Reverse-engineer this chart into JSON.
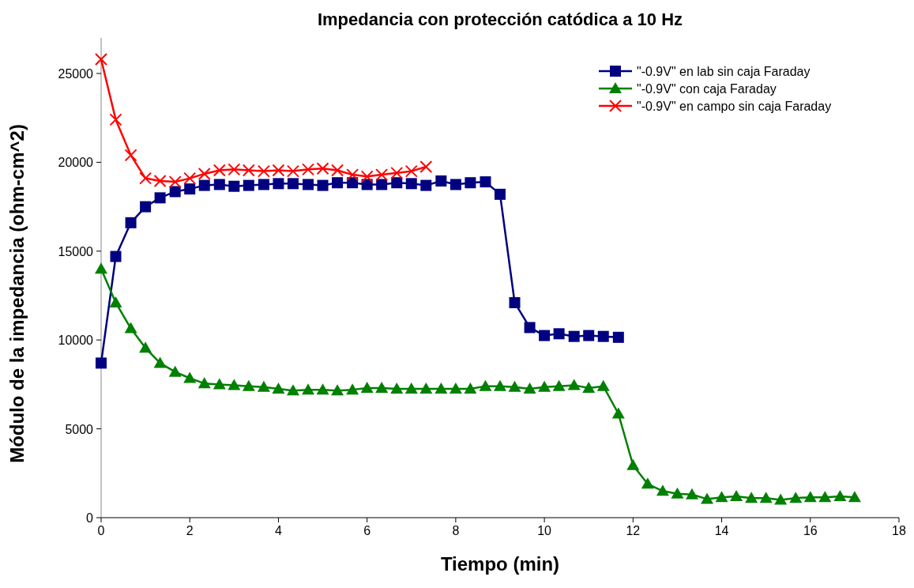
{
  "chart_data": {
    "type": "line",
    "title": "Impedancia con protección catódica a 10 Hz",
    "xlabel": "Tiempo (min)",
    "ylabel": "Módulo de la impedancia (ohm-cm^2)",
    "xlim": [
      0,
      18
    ],
    "xticks": [
      0,
      2,
      4,
      6,
      8,
      10,
      12,
      14,
      16,
      18
    ],
    "ylim": [
      0,
      27000
    ],
    "yticks": [
      0,
      5000,
      10000,
      15000,
      20000,
      25000
    ],
    "grid": false,
    "legend": "top right",
    "series": [
      {
        "name": "\"-0.9V\" en lab sin caja Faraday",
        "color": "#000080",
        "marker": "square",
        "x": [
          0,
          0.33,
          0.67,
          1,
          1.33,
          1.67,
          2,
          2.33,
          2.67,
          3,
          3.33,
          3.67,
          4,
          4.33,
          4.67,
          5,
          5.33,
          5.67,
          6,
          6.33,
          6.67,
          7,
          7.33,
          7.67,
          8,
          8.33,
          8.67,
          9,
          9.33,
          9.67,
          10,
          10.33,
          10.67,
          11,
          11.33,
          11.67
        ],
        "values": [
          8700,
          14700,
          16600,
          17500,
          18000,
          18350,
          18500,
          18700,
          18750,
          18650,
          18700,
          18750,
          18800,
          18800,
          18750,
          18700,
          18850,
          18850,
          18750,
          18750,
          18850,
          18800,
          18700,
          18950,
          18750,
          18850,
          18900,
          18200,
          12100,
          10700,
          10250,
          10350,
          10200,
          10250,
          10200,
          10150
        ]
      },
      {
        "name": "\"-0.9V\" con caja Faraday",
        "color": "#008000",
        "marker": "triangle",
        "x": [
          0,
          0.33,
          0.67,
          1,
          1.33,
          1.67,
          2,
          2.33,
          2.67,
          3,
          3.33,
          3.67,
          4,
          4.33,
          4.67,
          5,
          5.33,
          5.67,
          6,
          6.33,
          6.67,
          7,
          7.33,
          7.67,
          8,
          8.33,
          8.67,
          9,
          9.33,
          9.67,
          10,
          10.33,
          10.67,
          11,
          11.33,
          11.67,
          12,
          12.33,
          12.67,
          13,
          13.33,
          13.67,
          14,
          14.33,
          14.67,
          15,
          15.33,
          15.67,
          16,
          16.33,
          16.67,
          17
        ],
        "values": [
          14000,
          12100,
          10650,
          9550,
          8700,
          8200,
          7850,
          7550,
          7500,
          7450,
          7400,
          7350,
          7250,
          7150,
          7200,
          7200,
          7150,
          7200,
          7300,
          7300,
          7250,
          7250,
          7250,
          7250,
          7250,
          7250,
          7400,
          7400,
          7350,
          7250,
          7350,
          7400,
          7450,
          7300,
          7400,
          5850,
          2950,
          1900,
          1500,
          1350,
          1300,
          1050,
          1150,
          1200,
          1100,
          1100,
          1000,
          1100,
          1150,
          1150,
          1200,
          1150
        ]
      },
      {
        "name": "\"-0.9V\" en campo sin caja Faraday",
        "color": "#ff0000",
        "marker": "cross",
        "x": [
          0,
          0.33,
          0.67,
          1,
          1.33,
          1.67,
          2,
          2.33,
          2.67,
          3,
          3.33,
          3.67,
          4,
          4.33,
          4.67,
          5,
          5.33,
          5.67,
          6,
          6.33,
          6.67,
          7,
          7.33
        ],
        "values": [
          25800,
          22400,
          20400,
          19100,
          18950,
          18900,
          19100,
          19350,
          19550,
          19600,
          19550,
          19500,
          19550,
          19500,
          19600,
          19650,
          19550,
          19300,
          19200,
          19300,
          19400,
          19500,
          19750
        ]
      }
    ]
  }
}
